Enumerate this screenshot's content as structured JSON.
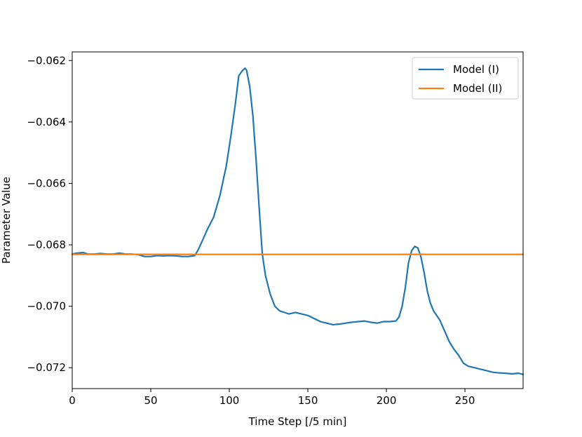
{
  "chart_data": {
    "type": "line",
    "title": "",
    "xlabel": "Time Step [/5 min]",
    "ylabel": "Parameter Value",
    "xlim": [
      0,
      287
    ],
    "ylim": [
      -0.07268,
      -0.06172
    ],
    "xticks": [
      0,
      50,
      100,
      150,
      200,
      250
    ],
    "yticks": [
      -0.072,
      -0.07,
      -0.068,
      -0.066,
      -0.064,
      -0.062
    ],
    "xtick_labels": [
      "0",
      "50",
      "100",
      "150",
      "200",
      "250"
    ],
    "ytick_labels": [
      "−0.072",
      "−0.070",
      "−0.068",
      "−0.066",
      "−0.064",
      "−0.062"
    ],
    "grid": false,
    "legend_position": "top-right",
    "series": [
      {
        "name": "Model (I)",
        "color": "#1f77b4",
        "x": [
          0,
          3,
          7,
          10,
          14,
          18,
          22,
          26,
          30,
          34,
          38,
          42,
          46,
          50,
          54,
          58,
          62,
          66,
          70,
          74,
          78,
          80,
          83,
          86,
          90,
          94,
          98,
          101,
          104,
          106,
          108,
          110,
          111,
          113,
          115,
          117,
          119,
          121,
          123,
          126,
          129,
          132,
          135,
          138,
          142,
          146,
          150,
          154,
          158,
          162,
          166,
          170,
          174,
          178,
          182,
          186,
          190,
          194,
          198,
          202,
          206,
          208,
          210,
          212,
          214,
          216,
          218,
          220,
          222,
          224,
          226,
          228,
          230,
          232,
          234,
          237,
          240,
          243,
          246,
          249,
          252,
          256,
          260,
          264,
          268,
          272,
          276,
          280,
          284,
          287
        ],
        "y": [
          -0.0683,
          -0.06827,
          -0.06825,
          -0.0683,
          -0.0683,
          -0.06828,
          -0.0683,
          -0.0683,
          -0.06827,
          -0.0683,
          -0.0683,
          -0.06832,
          -0.06838,
          -0.06838,
          -0.06835,
          -0.06836,
          -0.06835,
          -0.06836,
          -0.06838,
          -0.06838,
          -0.06835,
          -0.06818,
          -0.06785,
          -0.0675,
          -0.0671,
          -0.0664,
          -0.06545,
          -0.06445,
          -0.06335,
          -0.0625,
          -0.06235,
          -0.06225,
          -0.06232,
          -0.06285,
          -0.0638,
          -0.0652,
          -0.0668,
          -0.0683,
          -0.069,
          -0.0696,
          -0.07,
          -0.07015,
          -0.0702,
          -0.07025,
          -0.0702,
          -0.07025,
          -0.0703,
          -0.0704,
          -0.0705,
          -0.07055,
          -0.0706,
          -0.07058,
          -0.07055,
          -0.07052,
          -0.0705,
          -0.07048,
          -0.07052,
          -0.07055,
          -0.0705,
          -0.0705,
          -0.07048,
          -0.07035,
          -0.07,
          -0.0694,
          -0.0686,
          -0.0682,
          -0.06805,
          -0.0681,
          -0.0684,
          -0.0689,
          -0.0695,
          -0.0699,
          -0.07015,
          -0.0703,
          -0.07045,
          -0.0708,
          -0.07115,
          -0.0714,
          -0.0716,
          -0.07185,
          -0.07195,
          -0.072,
          -0.07205,
          -0.0721,
          -0.07215,
          -0.07217,
          -0.07218,
          -0.0722,
          -0.07218,
          -0.07222
        ]
      },
      {
        "name": "Model (II)",
        "color": "#ff7f0e",
        "x": [
          0,
          287
        ],
        "y": [
          -0.06831,
          -0.06831
        ]
      }
    ]
  }
}
